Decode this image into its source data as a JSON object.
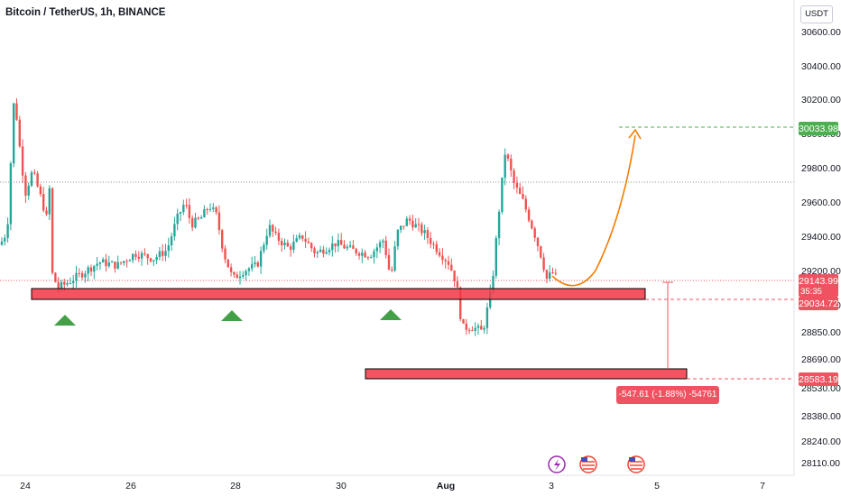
{
  "header": {
    "title": "Bitcoin / TetherUS, 1h, BINANCE",
    "currency_button": "USDT"
  },
  "price_tags": {
    "target": {
      "price": "30033.98",
      "color": "#4caf50"
    },
    "current": {
      "price": "29143.99",
      "countdown": "35:35",
      "color": "#ef5361"
    },
    "support": {
      "price": "29034.72",
      "color": "#ef5361"
    },
    "low": {
      "price": "28583.19",
      "color": "#ef5361"
    }
  },
  "measure_label": "-547.61 (-1.88%) -54761",
  "colors": {
    "up": "#26a69a",
    "down": "#ef5350",
    "zone": "#f23645",
    "arrow": "#4caf50",
    "path": "#f57c00",
    "measure": "#ef5361"
  },
  "icons": [
    "lightning-event-icon",
    "us-flag-icon",
    "us-flag-icon"
  ],
  "chart_data": {
    "type": "candlestick",
    "symbol": "BTCUSDT",
    "y_ticks": [
      30600,
      30400,
      30200,
      30000,
      29800,
      29600,
      29400,
      29200,
      29000,
      28850,
      28690,
      28530,
      28380,
      28240,
      28110
    ],
    "y_tick_labels": [
      "30600.00",
      "30400.00",
      "30200.00",
      "30000.00",
      "29800.00",
      "29600.00",
      "29400.00",
      "29200.00",
      "29000.00",
      "28850.00",
      "28690.00",
      "28530.00",
      "28380.00",
      "28240.00",
      "28110.00"
    ],
    "x_tick_labels": [
      "24",
      "26",
      "28",
      "30",
      "Aug",
      "3",
      "5",
      "7"
    ],
    "support_zone": {
      "top": 29080,
      "bottom": 29010
    },
    "lower_zone": {
      "top": 28610,
      "bottom": 28555
    },
    "resistance_line": 29710,
    "last_price": 29143.99,
    "target_price": 30033.98,
    "key_points": [
      {
        "t": "Jul 24",
        "price": 29350
      },
      {
        "t": "Jul 24 12h",
        "price": 30200
      },
      {
        "t": "Jul 25",
        "price": 29100
      },
      {
        "t": "Jul 27",
        "price": 29600
      },
      {
        "t": "Jul 28",
        "price": 29150
      },
      {
        "t": "Jul 29",
        "price": 29400
      },
      {
        "t": "Jul 31",
        "price": 29100
      },
      {
        "t": "Aug 1",
        "price": 28800
      },
      {
        "t": "Aug 2",
        "price": 29900
      },
      {
        "t": "Aug 3",
        "price": 29144
      }
    ],
    "markers": [
      "up-arrow",
      "up-arrow",
      "up-arrow"
    ]
  }
}
